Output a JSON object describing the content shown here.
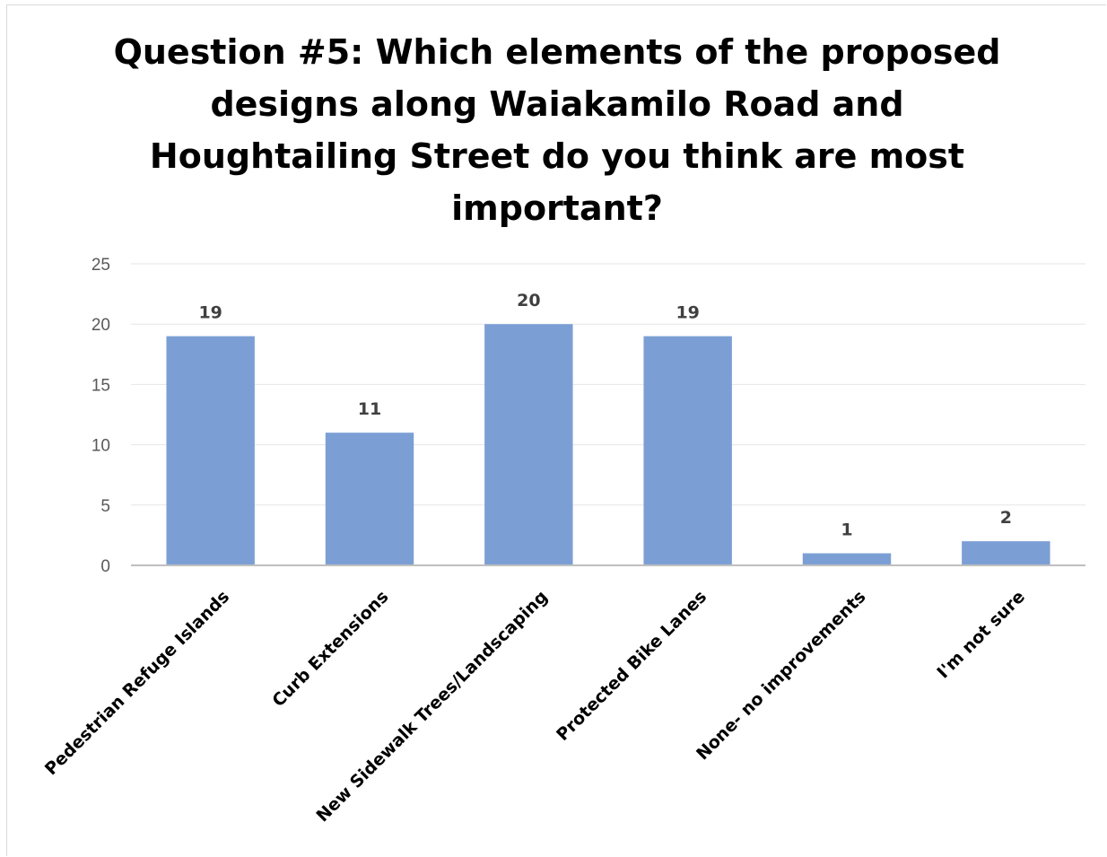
{
  "chart_data": {
    "type": "bar",
    "title": "Question #5: Which elements of the proposed designs along Waiakamilo Road and Houghtailing Street do you think are most important?",
    "categories": [
      "Pedestrian Refuge Islands",
      "Curb Extensions",
      "New Sidewalk Trees/Landscaping",
      "Protected Bike Lanes",
      "None- no improvements",
      "I'm not sure"
    ],
    "values": [
      19,
      11,
      20,
      19,
      1,
      2
    ],
    "data_labels": [
      "19",
      "11",
      "20",
      "19",
      "1",
      "2"
    ],
    "y_ticks": [
      "0",
      "5",
      "10",
      "15",
      "20",
      "25"
    ],
    "xlabel": "",
    "ylabel": "",
    "ylim": [
      0,
      25
    ],
    "grid": true,
    "legend": "none",
    "bar_color": "#7b9fd5",
    "gridline_color": "#e6e6e6",
    "axis_color": "#bfbfbf"
  }
}
